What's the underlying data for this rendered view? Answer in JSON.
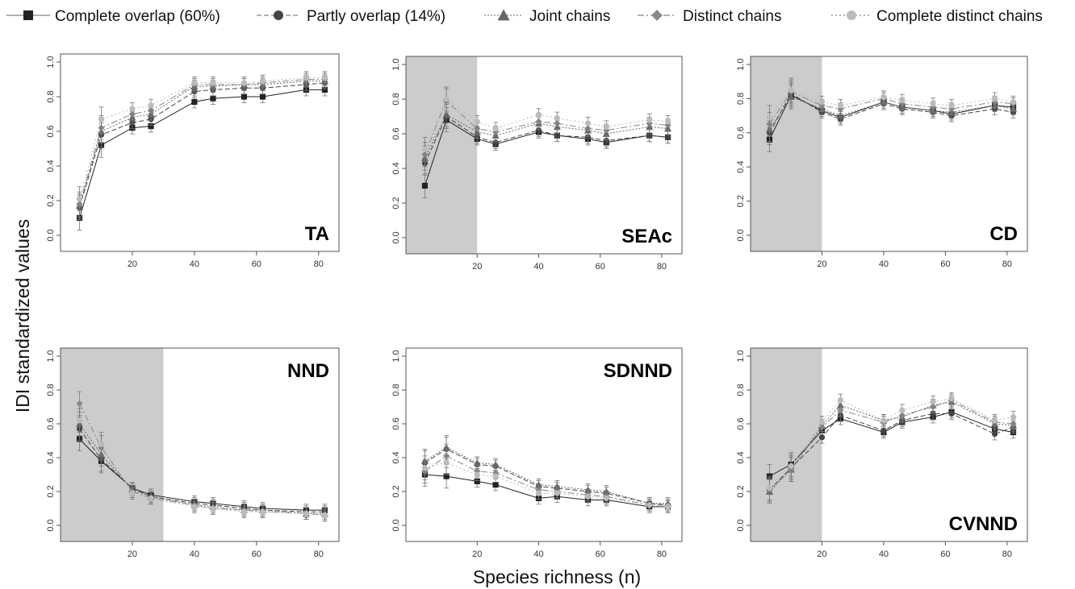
{
  "chart_data": {
    "type": "line",
    "ylabel": "IDI standardized values",
    "xlabel": "Species richness (n)",
    "legend": [
      {
        "key": "co",
        "label": "Complete overlap (60%)",
        "marker": "square",
        "color": "#222222",
        "dash": "none"
      },
      {
        "key": "po",
        "label": "Partly overlap (14%)",
        "marker": "circle",
        "color": "#444444",
        "dash": "6,3"
      },
      {
        "key": "jc",
        "label": "Joint chains",
        "marker": "triangle",
        "color": "#666666",
        "dash": "2,2"
      },
      {
        "key": "dc",
        "label": "Distinct chains",
        "marker": "diamond",
        "color": "#888888",
        "dash": "8,3,2,3"
      },
      {
        "key": "cdc",
        "label": "Complete distinct chains",
        "marker": "circle",
        "color": "#bbbbbb",
        "dash": "2,3"
      }
    ],
    "legend_position": "top",
    "x": [
      3,
      10,
      20,
      26,
      40,
      46,
      56,
      62,
      76,
      82
    ],
    "xticks": [
      "20",
      "40",
      "60",
      "80"
    ],
    "yticks": [
      "0.0",
      "0.2",
      "0.4",
      "0.6",
      "0.8",
      "1.0"
    ],
    "xlim": [
      0,
      85
    ],
    "ylim": [
      0,
      1
    ],
    "panels": [
      {
        "label": "TA",
        "label_pos": "bottom-right",
        "shade_to": null,
        "series": {
          "co": [
            0.1,
            0.52,
            0.62,
            0.63,
            0.77,
            0.79,
            0.8,
            0.8,
            0.84,
            0.84
          ],
          "po": [
            0.16,
            0.58,
            0.65,
            0.67,
            0.83,
            0.84,
            0.85,
            0.85,
            0.87,
            0.88
          ],
          "jc": [
            0.17,
            0.6,
            0.68,
            0.7,
            0.86,
            0.86,
            0.87,
            0.87,
            0.89,
            0.89
          ],
          "dc": [
            0.18,
            0.62,
            0.7,
            0.72,
            0.87,
            0.87,
            0.87,
            0.88,
            0.9,
            0.9
          ],
          "cdc": [
            0.21,
            0.67,
            0.73,
            0.75,
            0.88,
            0.88,
            0.88,
            0.89,
            0.91,
            0.91
          ]
        }
      },
      {
        "label": "SEAc",
        "label_pos": "bottom-right",
        "shade_to": 20,
        "series": {
          "co": [
            0.3,
            0.68,
            0.57,
            0.54,
            0.61,
            0.59,
            0.57,
            0.55,
            0.59,
            0.58
          ],
          "po": [
            0.43,
            0.7,
            0.58,
            0.55,
            0.62,
            0.59,
            0.58,
            0.56,
            0.59,
            0.58
          ],
          "jc": [
            0.46,
            0.71,
            0.61,
            0.59,
            0.66,
            0.64,
            0.62,
            0.6,
            0.64,
            0.63
          ],
          "dc": [
            0.48,
            0.79,
            0.63,
            0.61,
            0.67,
            0.66,
            0.63,
            0.62,
            0.66,
            0.65
          ],
          "cdc": [
            0.51,
            0.8,
            0.67,
            0.63,
            0.71,
            0.69,
            0.66,
            0.64,
            0.68,
            0.67
          ]
        }
      },
      {
        "label": "CD",
        "label_pos": "bottom-right",
        "shade_to": 20,
        "series": {
          "co": [
            0.56,
            0.82,
            0.73,
            0.69,
            0.78,
            0.75,
            0.73,
            0.71,
            0.76,
            0.75
          ],
          "po": [
            0.6,
            0.83,
            0.72,
            0.68,
            0.77,
            0.74,
            0.72,
            0.7,
            0.74,
            0.72
          ],
          "jc": [
            0.62,
            0.81,
            0.74,
            0.7,
            0.78,
            0.75,
            0.73,
            0.72,
            0.76,
            0.74
          ],
          "dc": [
            0.65,
            0.84,
            0.76,
            0.74,
            0.8,
            0.77,
            0.75,
            0.74,
            0.78,
            0.77
          ],
          "cdc": [
            0.69,
            0.85,
            0.78,
            0.76,
            0.81,
            0.79,
            0.77,
            0.76,
            0.8,
            0.78
          ]
        }
      },
      {
        "label": "NND",
        "label_pos": "top-right",
        "shade_to": 30,
        "series": {
          "co": [
            0.51,
            0.38,
            0.22,
            0.18,
            0.14,
            0.13,
            0.11,
            0.1,
            0.09,
            0.09
          ],
          "po": [
            0.57,
            0.39,
            0.22,
            0.17,
            0.13,
            0.12,
            0.1,
            0.09,
            0.08,
            0.08
          ],
          "jc": [
            0.6,
            0.42,
            0.21,
            0.17,
            0.12,
            0.11,
            0.09,
            0.09,
            0.07,
            0.07
          ],
          "dc": [
            0.72,
            0.46,
            0.2,
            0.16,
            0.12,
            0.1,
            0.09,
            0.08,
            0.07,
            0.06
          ],
          "cdc": [
            0.62,
            0.48,
            0.19,
            0.16,
            0.11,
            0.1,
            0.08,
            0.08,
            0.07,
            0.06
          ]
        }
      },
      {
        "label": "SDNND",
        "label_pos": "top-right",
        "shade_to": null,
        "series": {
          "co": [
            0.3,
            0.29,
            0.26,
            0.24,
            0.16,
            0.17,
            0.15,
            0.15,
            0.11,
            0.11
          ],
          "po": [
            0.37,
            0.45,
            0.36,
            0.35,
            0.23,
            0.22,
            0.2,
            0.19,
            0.13,
            0.12
          ],
          "jc": [
            0.38,
            0.46,
            0.37,
            0.36,
            0.24,
            0.23,
            0.21,
            0.2,
            0.13,
            0.13
          ],
          "dc": [
            0.32,
            0.41,
            0.32,
            0.31,
            0.21,
            0.2,
            0.18,
            0.17,
            0.12,
            0.12
          ],
          "cdc": [
            0.34,
            0.37,
            0.3,
            0.29,
            0.19,
            0.19,
            0.17,
            0.16,
            0.12,
            0.11
          ]
        }
      },
      {
        "label": "CVNND",
        "label_pos": "bottom-right",
        "shade_to": 20,
        "series": {
          "co": [
            0.29,
            0.36,
            0.56,
            0.63,
            0.55,
            0.61,
            0.64,
            0.67,
            0.57,
            0.55
          ],
          "po": [
            0.21,
            0.34,
            0.52,
            0.65,
            0.56,
            0.62,
            0.66,
            0.66,
            0.54,
            0.58
          ],
          "jc": [
            0.2,
            0.33,
            0.59,
            0.71,
            0.62,
            0.64,
            0.71,
            0.73,
            0.6,
            0.59
          ],
          "dc": [
            0.21,
            0.33,
            0.58,
            0.68,
            0.61,
            0.65,
            0.7,
            0.74,
            0.61,
            0.6
          ],
          "cdc": [
            0.22,
            0.35,
            0.61,
            0.74,
            0.62,
            0.68,
            0.73,
            0.75,
            0.62,
            0.64
          ]
        }
      }
    ]
  }
}
